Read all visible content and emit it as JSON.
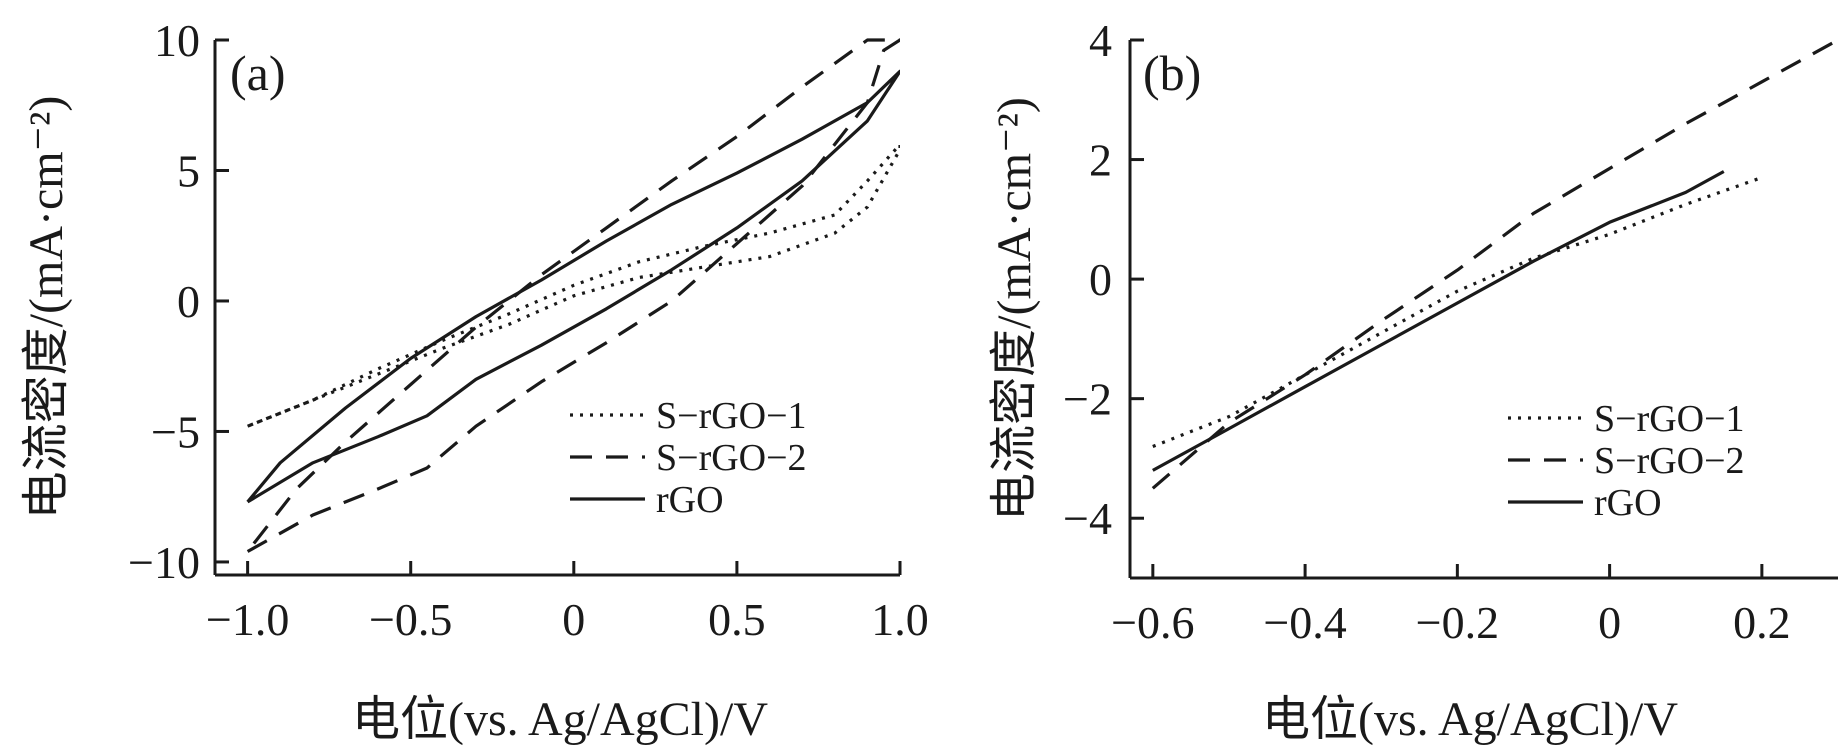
{
  "chart_data": [
    {
      "type": "line",
      "panel_label": "(a)",
      "xlabel": "电位(vs. Ag/AgCl)/V",
      "ylabel": "电流密度/(mA·cm⁻²)",
      "xlim": [
        -1.1,
        1.0
      ],
      "ylim": [
        -10.5,
        10
      ],
      "xticks": [
        -1.0,
        -0.5,
        0,
        0.5,
        1.0
      ],
      "xtick_labels": [
        "−1.0",
        "−0.5",
        "0",
        "0.5",
        "1.0"
      ],
      "yticks": [
        10,
        5,
        0,
        -5,
        -10
      ],
      "ytick_labels": [
        "10",
        "5",
        "0",
        "−5",
        "−10"
      ],
      "grid": false,
      "legend_position": "bottom-right",
      "series": [
        {
          "name": "S−rGO−1",
          "style": "dotted",
          "x": [
            -1.0,
            -0.8,
            -0.6,
            -0.4,
            -0.2,
            0.0,
            0.2,
            0.4,
            0.6,
            0.8,
            0.9,
            1.0,
            1.0,
            0.9,
            0.8,
            0.6,
            0.4,
            0.2,
            0.0,
            -0.2,
            -0.4,
            -0.6,
            -0.8,
            -1.0
          ],
          "y": [
            -4.8,
            -3.8,
            -2.8,
            -1.8,
            -0.9,
            0.2,
            0.9,
            1.3,
            1.7,
            2.6,
            3.6,
            5.8,
            6.0,
            4.6,
            3.3,
            2.6,
            2.1,
            1.5,
            0.6,
            -0.5,
            -1.5,
            -2.6,
            -3.8,
            -4.8
          ]
        },
        {
          "name": "S−rGO−2",
          "style": "dashed",
          "x": [
            -1.0,
            -0.8,
            -0.6,
            -0.45,
            -0.3,
            -0.1,
            0.1,
            0.3,
            0.5,
            0.7,
            0.9,
            0.95,
            1.0,
            0.95,
            0.9,
            0.7,
            0.5,
            0.3,
            0.1,
            -0.1,
            -0.3,
            -0.5,
            -0.7,
            -0.85,
            -1.0
          ],
          "y": [
            -9.6,
            -8.2,
            -7.2,
            -6.4,
            -4.8,
            -3.1,
            -1.6,
            0.0,
            2.2,
            4.4,
            7.6,
            9.6,
            10.0,
            10.0,
            10.0,
            8.2,
            6.3,
            4.6,
            2.8,
            1.0,
            -1.0,
            -3.2,
            -5.4,
            -7.2,
            -9.6
          ]
        },
        {
          "name": "rGO",
          "style": "solid",
          "x": [
            -1.0,
            -0.8,
            -0.6,
            -0.45,
            -0.3,
            -0.1,
            0.1,
            0.3,
            0.5,
            0.7,
            0.9,
            1.0,
            0.9,
            0.7,
            0.5,
            0.3,
            0.1,
            -0.1,
            -0.3,
            -0.5,
            -0.7,
            -0.9,
            -1.0
          ],
          "y": [
            -7.7,
            -6.2,
            -5.2,
            -4.4,
            -3.0,
            -1.7,
            -0.3,
            1.2,
            2.8,
            4.6,
            6.9,
            8.8,
            7.6,
            6.2,
            4.9,
            3.7,
            2.3,
            0.8,
            -0.6,
            -2.2,
            -4.1,
            -6.2,
            -7.7
          ]
        }
      ]
    },
    {
      "type": "line",
      "panel_label": "(b)",
      "xlabel": "电位(vs. Ag/AgCl)/V",
      "ylabel": "电流密度/(mA·cm⁻²)",
      "xlim": [
        -0.63,
        0.3
      ],
      "ylim": [
        -5,
        4
      ],
      "xticks": [
        -0.6,
        -0.4,
        -0.2,
        0,
        0.2
      ],
      "xtick_labels": [
        "−0.6",
        "−0.4",
        "−0.2",
        "0",
        "0.2"
      ],
      "yticks": [
        4,
        2,
        0,
        -2,
        -4
      ],
      "ytick_labels": [
        "4",
        "2",
        "0",
        "−2",
        "−4"
      ],
      "grid": false,
      "legend_position": "bottom-right",
      "series": [
        {
          "name": "S−rGO−1",
          "style": "dotted",
          "x": [
            -0.6,
            -0.5,
            -0.4,
            -0.3,
            -0.2,
            -0.1,
            0.0,
            0.1,
            0.2
          ],
          "y": [
            -2.8,
            -2.3,
            -1.6,
            -0.9,
            -0.2,
            0.35,
            0.75,
            1.25,
            1.7
          ]
        },
        {
          "name": "S−rGO−2",
          "style": "dashed",
          "x": [
            -0.6,
            -0.5,
            -0.4,
            -0.3,
            -0.2,
            -0.1,
            0.0,
            0.1,
            0.2,
            0.3
          ],
          "y": [
            -3.5,
            -2.4,
            -1.6,
            -0.7,
            0.15,
            1.1,
            1.85,
            2.6,
            3.3,
            4.0
          ]
        },
        {
          "name": "rGO",
          "style": "solid",
          "x": [
            -0.6,
            -0.5,
            -0.4,
            -0.3,
            -0.2,
            -0.1,
            0.0,
            0.1,
            0.15
          ],
          "y": [
            -3.2,
            -2.5,
            -1.8,
            -1.1,
            -0.4,
            0.3,
            0.95,
            1.45,
            1.8
          ]
        }
      ]
    }
  ]
}
